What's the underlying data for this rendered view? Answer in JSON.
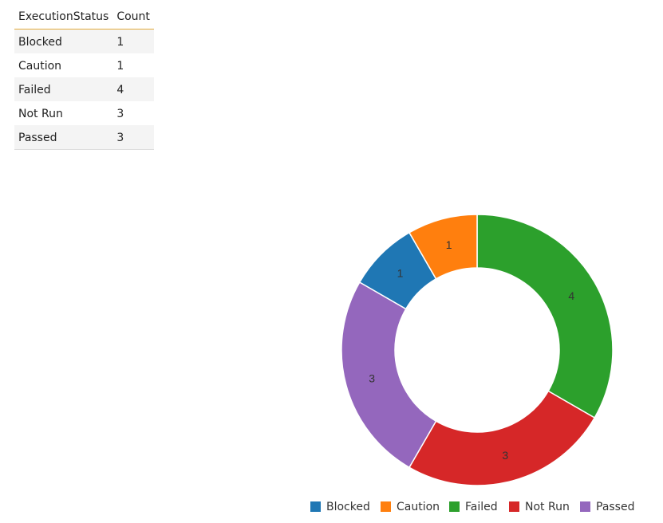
{
  "table": {
    "headers": [
      "ExecutionStatus",
      "Count"
    ],
    "rows": [
      {
        "status": "Blocked",
        "count": "1"
      },
      {
        "status": "Caution",
        "count": "1"
      },
      {
        "status": "Failed",
        "count": "4"
      },
      {
        "status": "Not Run",
        "count": "3"
      },
      {
        "status": "Passed",
        "count": "3"
      }
    ]
  },
  "chart_data": {
    "type": "pie",
    "donut": true,
    "categories": [
      "Blocked",
      "Caution",
      "Failed",
      "Not Run",
      "Passed"
    ],
    "values": [
      1,
      1,
      4,
      3,
      3
    ],
    "colors": [
      "#1f77b4",
      "#ff7f0e",
      "#2ca02c",
      "#d62728",
      "#9467bd"
    ],
    "legend_position": "bottom"
  }
}
